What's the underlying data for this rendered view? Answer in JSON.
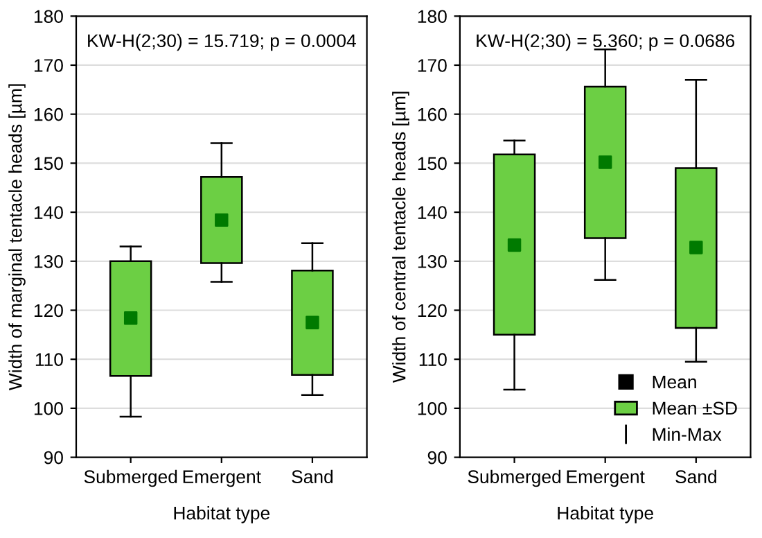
{
  "chart_data": [
    {
      "type": "box",
      "categories": [
        "Submerged",
        "Emergent",
        "Sand"
      ],
      "xlabel": "Habitat type",
      "ylabel": "Width of marginal tentacle heads [µm]",
      "ylim": [
        90,
        180
      ],
      "yticks": [
        90,
        100,
        110,
        120,
        130,
        140,
        150,
        160,
        170,
        180
      ],
      "grid": "y",
      "marker": "square",
      "color": "#6ccf44",
      "boxes": [
        {
          "low": 98.3,
          "q1": 106.6,
          "median": 118.4,
          "q3": 130.0,
          "high": 133.0
        },
        {
          "low": 125.8,
          "q1": 129.6,
          "median": 138.4,
          "q3": 147.2,
          "high": 154.1
        },
        {
          "low": 102.7,
          "q1": 106.8,
          "median": 117.5,
          "q3": 128.1,
          "high": 133.7
        }
      ],
      "annotations": [
        "KW-H(2;30) = 15.719; p = 0.0004"
      ]
    },
    {
      "type": "box",
      "categories": [
        "Submerged",
        "Emergent",
        "Sand"
      ],
      "xlabel": "Habitat type",
      "ylabel": "Width of central tentacle heads [µm]",
      "ylim": [
        90,
        180
      ],
      "yticks": [
        90,
        100,
        110,
        120,
        130,
        140,
        150,
        160,
        170,
        180
      ],
      "grid": "y",
      "marker": "square",
      "color": "#6ccf44",
      "boxes": [
        {
          "low": 103.8,
          "q1": 115.0,
          "median": 133.3,
          "q3": 151.8,
          "high": 154.6
        },
        {
          "low": 126.2,
          "q1": 134.7,
          "median": 150.2,
          "q3": 165.6,
          "high": 173.2
        },
        {
          "low": 109.5,
          "q1": 116.4,
          "median": 132.8,
          "q3": 149.0,
          "high": 167.0
        }
      ],
      "annotations": [
        "KW-H(2;30) = 5.360; p = 0.0686",
        "Mean",
        "Mean ±SD",
        "Min-Max"
      ]
    }
  ]
}
